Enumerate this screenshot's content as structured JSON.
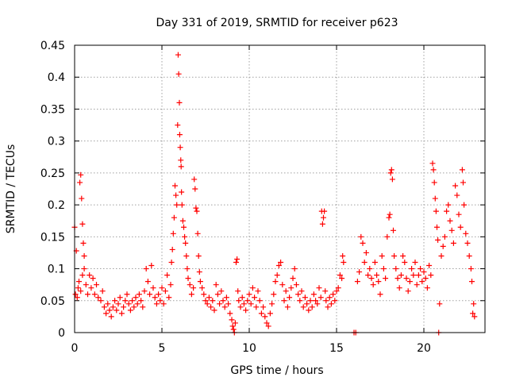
{
  "chart_data": {
    "type": "scatter",
    "title": "Day 331 of 2019, SRMTID for receiver p623",
    "xlabel": "GPS time / hours",
    "ylabel": "SRMTID / TECUs",
    "xlim": [
      0,
      23.5
    ],
    "ylim": [
      0,
      0.45
    ],
    "x_ticks": [
      0,
      5,
      10,
      15,
      20
    ],
    "x_tick_labels": [
      "0",
      "5",
      "10",
      "15",
      "20"
    ],
    "y_ticks": [
      0,
      0.05,
      0.1,
      0.15,
      0.2,
      0.25,
      0.3,
      0.35,
      0.4,
      0.45
    ],
    "y_tick_labels": [
      "0",
      "0.05",
      "0.1",
      "0.15",
      "0.2",
      "0.25",
      "0.3",
      "0.35",
      "0.4",
      "0.45"
    ],
    "grid": true,
    "legend": "none",
    "marker": "plus",
    "color": "#ff0000",
    "series": [
      {
        "name": "SRMTID",
        "points": [
          [
            0.0,
            0.165
          ],
          [
            0.1,
            0.128
          ],
          [
            0.2,
            0.07
          ],
          [
            0.3,
            0.235
          ],
          [
            0.35,
            0.247
          ],
          [
            0.4,
            0.21
          ],
          [
            0.45,
            0.17
          ],
          [
            0.5,
            0.14
          ],
          [
            0.55,
            0.12
          ],
          [
            0.05,
            0.06
          ],
          [
            0.15,
            0.055
          ],
          [
            0.25,
            0.08
          ],
          [
            0.35,
            0.065
          ],
          [
            0.45,
            0.09
          ],
          [
            0.55,
            0.1
          ],
          [
            0.65,
            0.075
          ],
          [
            0.75,
            0.06
          ],
          [
            0.85,
            0.09
          ],
          [
            0.95,
            0.07
          ],
          [
            1.05,
            0.085
          ],
          [
            1.15,
            0.06
          ],
          [
            1.25,
            0.075
          ],
          [
            1.35,
            0.055
          ],
          [
            1.5,
            0.05
          ],
          [
            1.6,
            0.065
          ],
          [
            1.7,
            0.04
          ],
          [
            1.8,
            0.03
          ],
          [
            1.9,
            0.045
          ],
          [
            2.0,
            0.035
          ],
          [
            2.1,
            0.025
          ],
          [
            2.2,
            0.04
          ],
          [
            2.3,
            0.05
          ],
          [
            2.4,
            0.035
          ],
          [
            2.5,
            0.045
          ],
          [
            2.6,
            0.055
          ],
          [
            2.7,
            0.03
          ],
          [
            2.8,
            0.04
          ],
          [
            2.9,
            0.05
          ],
          [
            3.0,
            0.06
          ],
          [
            3.1,
            0.045
          ],
          [
            3.2,
            0.035
          ],
          [
            3.3,
            0.05
          ],
          [
            3.4,
            0.04
          ],
          [
            3.5,
            0.055
          ],
          [
            3.6,
            0.045
          ],
          [
            3.7,
            0.06
          ],
          [
            3.8,
            0.05
          ],
          [
            3.9,
            0.04
          ],
          [
            4.0,
            0.065
          ],
          [
            4.1,
            0.1
          ],
          [
            4.2,
            0.08
          ],
          [
            4.3,
            0.06
          ],
          [
            4.4,
            0.105
          ],
          [
            4.5,
            0.07
          ],
          [
            4.6,
            0.055
          ],
          [
            4.7,
            0.045
          ],
          [
            4.8,
            0.06
          ],
          [
            4.9,
            0.05
          ],
          [
            5.0,
            0.07
          ],
          [
            5.1,
            0.045
          ],
          [
            5.2,
            0.065
          ],
          [
            5.3,
            0.09
          ],
          [
            5.4,
            0.055
          ],
          [
            5.5,
            0.075
          ],
          [
            5.55,
            0.11
          ],
          [
            5.6,
            0.13
          ],
          [
            5.65,
            0.155
          ],
          [
            5.7,
            0.18
          ],
          [
            5.75,
            0.23
          ],
          [
            5.8,
            0.215
          ],
          [
            5.85,
            0.2
          ],
          [
            5.9,
            0.325
          ],
          [
            5.93,
            0.435
          ],
          [
            5.96,
            0.405
          ],
          [
            6.0,
            0.36
          ],
          [
            6.02,
            0.31
          ],
          [
            6.05,
            0.29
          ],
          [
            6.08,
            0.27
          ],
          [
            6.1,
            0.26
          ],
          [
            6.12,
            0.22
          ],
          [
            6.15,
            0.2
          ],
          [
            6.2,
            0.175
          ],
          [
            6.25,
            0.165
          ],
          [
            6.3,
            0.15
          ],
          [
            6.35,
            0.14
          ],
          [
            6.4,
            0.12
          ],
          [
            6.45,
            0.1
          ],
          [
            6.5,
            0.085
          ],
          [
            6.6,
            0.075
          ],
          [
            6.7,
            0.06
          ],
          [
            6.8,
            0.07
          ],
          [
            6.85,
            0.24
          ],
          [
            6.9,
            0.225
          ],
          [
            6.95,
            0.195
          ],
          [
            7.0,
            0.19
          ],
          [
            7.05,
            0.155
          ],
          [
            7.1,
            0.12
          ],
          [
            7.15,
            0.095
          ],
          [
            7.2,
            0.08
          ],
          [
            7.3,
            0.07
          ],
          [
            7.4,
            0.06
          ],
          [
            7.5,
            0.05
          ],
          [
            7.6,
            0.045
          ],
          [
            7.7,
            0.055
          ],
          [
            7.8,
            0.04
          ],
          [
            7.9,
            0.05
          ],
          [
            8.0,
            0.035
          ],
          [
            8.1,
            0.075
          ],
          [
            8.2,
            0.06
          ],
          [
            8.3,
            0.045
          ],
          [
            8.4,
            0.065
          ],
          [
            8.5,
            0.05
          ],
          [
            8.6,
            0.04
          ],
          [
            8.7,
            0.055
          ],
          [
            8.8,
            0.045
          ],
          [
            8.9,
            0.03
          ],
          [
            9.0,
            0.02
          ],
          [
            9.05,
            0.01
          ],
          [
            9.1,
            0.005
          ],
          [
            9.15,
            0.0
          ],
          [
            9.2,
            0.015
          ],
          [
            9.25,
            0.11
          ],
          [
            9.3,
            0.115
          ],
          [
            9.35,
            0.065
          ],
          [
            9.4,
            0.05
          ],
          [
            9.5,
            0.04
          ],
          [
            9.6,
            0.055
          ],
          [
            9.7,
            0.045
          ],
          [
            9.8,
            0.035
          ],
          [
            9.9,
            0.05
          ],
          [
            10.0,
            0.06
          ],
          [
            10.1,
            0.045
          ],
          [
            10.2,
            0.07
          ],
          [
            10.3,
            0.055
          ],
          [
            10.4,
            0.04
          ],
          [
            10.5,
            0.065
          ],
          [
            10.6,
            0.05
          ],
          [
            10.7,
            0.03
          ],
          [
            10.8,
            0.04
          ],
          [
            10.9,
            0.025
          ],
          [
            11.0,
            0.015
          ],
          [
            11.1,
            0.01
          ],
          [
            11.2,
            0.03
          ],
          [
            11.3,
            0.045
          ],
          [
            11.4,
            0.06
          ],
          [
            11.5,
            0.08
          ],
          [
            11.6,
            0.09
          ],
          [
            11.7,
            0.105
          ],
          [
            11.8,
            0.11
          ],
          [
            11.9,
            0.075
          ],
          [
            12.0,
            0.05
          ],
          [
            12.1,
            0.065
          ],
          [
            12.2,
            0.04
          ],
          [
            12.3,
            0.055
          ],
          [
            12.4,
            0.07
          ],
          [
            12.5,
            0.085
          ],
          [
            12.6,
            0.1
          ],
          [
            12.7,
            0.075
          ],
          [
            12.8,
            0.06
          ],
          [
            12.9,
            0.05
          ],
          [
            13.0,
            0.065
          ],
          [
            13.1,
            0.04
          ],
          [
            13.2,
            0.055
          ],
          [
            13.3,
            0.045
          ],
          [
            13.4,
            0.035
          ],
          [
            13.5,
            0.05
          ],
          [
            13.6,
            0.04
          ],
          [
            13.7,
            0.06
          ],
          [
            13.8,
            0.05
          ],
          [
            13.9,
            0.045
          ],
          [
            14.0,
            0.07
          ],
          [
            14.1,
            0.055
          ],
          [
            14.15,
            0.19
          ],
          [
            14.2,
            0.17
          ],
          [
            14.25,
            0.18
          ],
          [
            14.3,
            0.19
          ],
          [
            14.35,
            0.065
          ],
          [
            14.4,
            0.05
          ],
          [
            14.5,
            0.04
          ],
          [
            14.6,
            0.055
          ],
          [
            14.7,
            0.045
          ],
          [
            14.8,
            0.06
          ],
          [
            14.9,
            0.05
          ],
          [
            15.0,
            0.065
          ],
          [
            15.1,
            0.07
          ],
          [
            15.2,
            0.09
          ],
          [
            15.3,
            0.085
          ],
          [
            15.35,
            0.12
          ],
          [
            15.4,
            0.11
          ],
          [
            16.0,
            0.0
          ],
          [
            16.1,
            0.0
          ],
          [
            16.2,
            0.08
          ],
          [
            16.3,
            0.095
          ],
          [
            16.4,
            0.15
          ],
          [
            16.5,
            0.14
          ],
          [
            16.6,
            0.11
          ],
          [
            16.7,
            0.125
          ],
          [
            16.8,
            0.09
          ],
          [
            16.9,
            0.1
          ],
          [
            17.0,
            0.085
          ],
          [
            17.1,
            0.075
          ],
          [
            17.2,
            0.11
          ],
          [
            17.3,
            0.09
          ],
          [
            17.4,
            0.08
          ],
          [
            17.5,
            0.06
          ],
          [
            17.6,
            0.12
          ],
          [
            17.7,
            0.1
          ],
          [
            17.8,
            0.085
          ],
          [
            17.9,
            0.15
          ],
          [
            18.0,
            0.18
          ],
          [
            18.05,
            0.185
          ],
          [
            18.1,
            0.25
          ],
          [
            18.15,
            0.255
          ],
          [
            18.2,
            0.24
          ],
          [
            18.25,
            0.16
          ],
          [
            18.3,
            0.12
          ],
          [
            18.4,
            0.1
          ],
          [
            18.5,
            0.085
          ],
          [
            18.6,
            0.07
          ],
          [
            18.7,
            0.09
          ],
          [
            18.8,
            0.12
          ],
          [
            18.9,
            0.11
          ],
          [
            19.0,
            0.085
          ],
          [
            19.1,
            0.065
          ],
          [
            19.2,
            0.08
          ],
          [
            19.3,
            0.1
          ],
          [
            19.4,
            0.09
          ],
          [
            19.5,
            0.11
          ],
          [
            19.6,
            0.075
          ],
          [
            19.7,
            0.09
          ],
          [
            19.8,
            0.1
          ],
          [
            19.9,
            0.08
          ],
          [
            20.0,
            0.095
          ],
          [
            20.1,
            0.085
          ],
          [
            20.2,
            0.07
          ],
          [
            20.3,
            0.105
          ],
          [
            20.4,
            0.09
          ],
          [
            20.5,
            0.265
          ],
          [
            20.55,
            0.255
          ],
          [
            20.6,
            0.235
          ],
          [
            20.65,
            0.21
          ],
          [
            20.7,
            0.19
          ],
          [
            20.75,
            0.165
          ],
          [
            20.8,
            0.145
          ],
          [
            20.85,
            0.0
          ],
          [
            20.9,
            0.045
          ],
          [
            21.0,
            0.12
          ],
          [
            21.1,
            0.135
          ],
          [
            21.2,
            0.15
          ],
          [
            21.3,
            0.19
          ],
          [
            21.4,
            0.2
          ],
          [
            21.5,
            0.175
          ],
          [
            21.6,
            0.16
          ],
          [
            21.7,
            0.14
          ],
          [
            21.8,
            0.23
          ],
          [
            21.9,
            0.215
          ],
          [
            22.0,
            0.185
          ],
          [
            22.1,
            0.165
          ],
          [
            22.2,
            0.255
          ],
          [
            22.25,
            0.235
          ],
          [
            22.3,
            0.2
          ],
          [
            22.4,
            0.155
          ],
          [
            22.5,
            0.14
          ],
          [
            22.6,
            0.12
          ],
          [
            22.7,
            0.1
          ],
          [
            22.75,
            0.08
          ],
          [
            22.8,
            0.03
          ],
          [
            22.85,
            0.045
          ],
          [
            22.9,
            0.025
          ]
        ]
      }
    ]
  }
}
